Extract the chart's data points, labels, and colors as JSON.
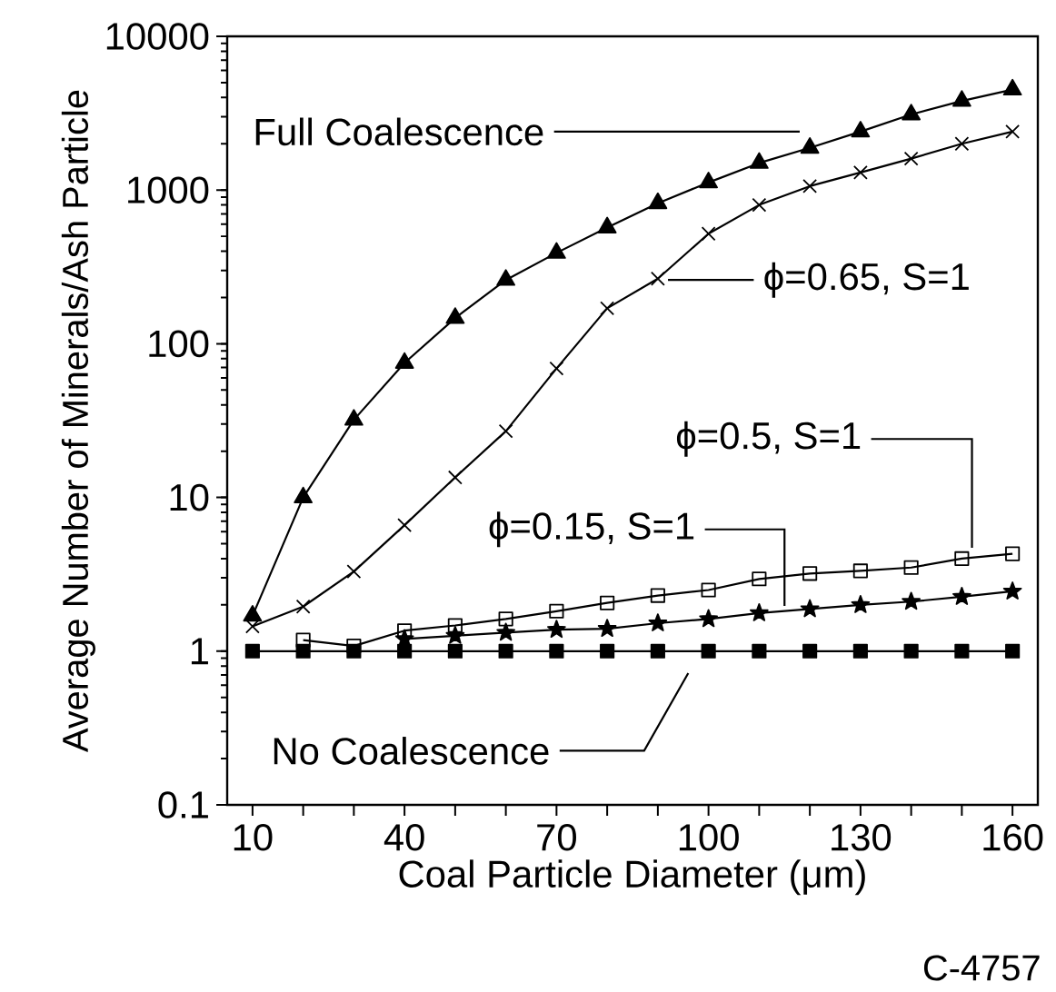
{
  "chart_data": {
    "type": "line",
    "xlabel": "Coal Particle Diameter (μm)",
    "ylabel": "Average Number of Minerals/Ash Particle",
    "annotations": [
      "C-4757"
    ],
    "x": [
      10,
      20,
      30,
      40,
      50,
      60,
      70,
      80,
      90,
      100,
      110,
      120,
      130,
      140,
      150,
      160
    ],
    "xlim": [
      5,
      165
    ],
    "xticks": [
      10,
      {
        "value": 20,
        "label": null
      },
      {
        "value": 30,
        "label": null
      },
      40,
      {
        "value": 50,
        "label": null
      },
      {
        "value": 60,
        "label": null
      },
      70,
      {
        "value": 80,
        "label": null
      },
      {
        "value": 90,
        "label": null
      },
      100,
      {
        "value": 110,
        "label": null
      },
      {
        "value": 120,
        "label": null
      },
      130,
      {
        "value": 140,
        "label": null
      },
      {
        "value": 150,
        "label": null
      },
      160
    ],
    "ylim": [
      0.1,
      10000
    ],
    "yticks": [
      0.1,
      1,
      10,
      100,
      1000,
      10000
    ],
    "log": "y",
    "grid": false,
    "legend": "bottom left",
    "series": [
      {
        "name": "Full Coalescence",
        "color": "#000000",
        "marker": "triangle",
        "values": [
          1.7,
          10,
          32,
          75,
          147,
          260,
          390,
          570,
          820,
          1120,
          1500,
          1880,
          2400,
          3100,
          3800,
          4500
        ]
      },
      {
        "name": "ϕ=0.65, S=1",
        "color": "#000000",
        "marker": "cross",
        "values": [
          1.45,
          1.95,
          3.3,
          6.6,
          13.5,
          27,
          69,
          170,
          265,
          520,
          800,
          1060,
          1300,
          1600,
          2000,
          2400
        ]
      },
      {
        "name": "ϕ=0.5, S=1",
        "color": "#000000",
        "marker": "square",
        "values": [
          null,
          1.18,
          1.08,
          1.36,
          1.47,
          1.62,
          1.82,
          2.06,
          2.3,
          2.5,
          2.95,
          3.2,
          3.33,
          3.5,
          4.0,
          4.3
        ]
      },
      {
        "name": "ϕ=0.15, S=1",
        "color": "#000000",
        "marker": "star",
        "values": [
          null,
          null,
          null,
          1.2,
          1.26,
          1.32,
          1.38,
          1.4,
          1.52,
          1.62,
          1.77,
          1.88,
          2.0,
          2.1,
          2.26,
          2.45
        ]
      },
      {
        "name": "No Coalescence",
        "color": "#000000",
        "marker": "square",
        "values": [
          1,
          1,
          1,
          1,
          1,
          1,
          1,
          1,
          1,
          1,
          1,
          1,
          1,
          1,
          1,
          1
        ]
      }
    ]
  }
}
